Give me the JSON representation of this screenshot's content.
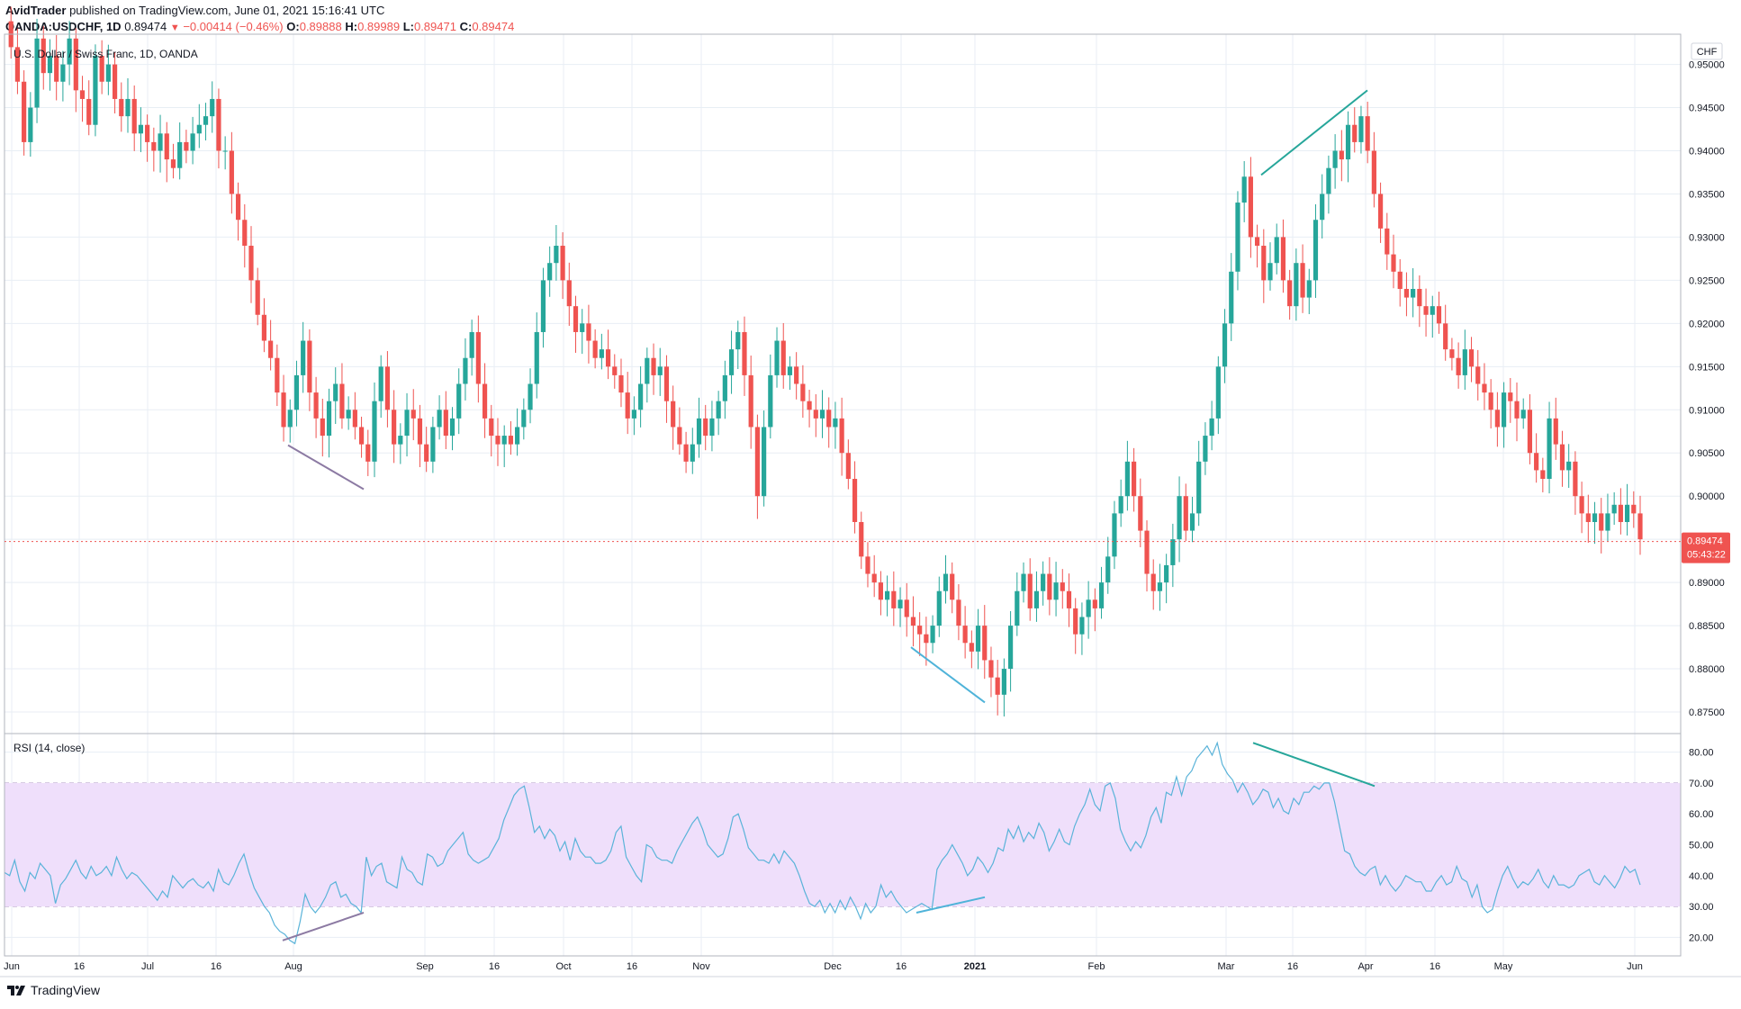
{
  "header": {
    "publisher": "AvidTrader",
    "published_text": "published on TradingView.com, June 01, 2021 15:16:41 UTC",
    "symbol": "OANDA:USDCHF, 1D",
    "last": "0.89474",
    "change": "−0.00414 (−0.46%)",
    "o_label": "O:",
    "o_value": "0.89888",
    "h_label": "H:",
    "h_value": "0.89989",
    "l_label": "L:",
    "l_value": "0.89471",
    "c_label": "C:",
    "c_value": "0.89474"
  },
  "footer": {
    "brand": "TradingView"
  },
  "colors": {
    "up": "#26a69a",
    "down": "#ef5350",
    "rsi_line": "#5ab3d9",
    "rsi_band": "#efdffb",
    "grid": "#e8eef4",
    "price_line": "#ef5350",
    "trend_teal": "#26a69a",
    "trend_purple": "#8c7aa3",
    "trend_blue": "#4fb3d9"
  },
  "chart_data": [
    {
      "type": "candlestick",
      "title": "U.S. Dollar / Swiss Franc, 1D, OANDA",
      "currency_label": "CHF",
      "ylim": [
        0.8725,
        0.9535
      ],
      "y_ticks": [
        "0.95000",
        "0.94500",
        "0.94000",
        "0.93500",
        "0.93000",
        "0.92500",
        "0.92000",
        "0.91500",
        "0.91000",
        "0.90500",
        "0.90000",
        "0.89500",
        "0.89000",
        "0.88500",
        "0.88000",
        "0.87500"
      ],
      "y_tick_values": [
        0.95,
        0.945,
        0.94,
        0.935,
        0.93,
        0.925,
        0.92,
        0.915,
        0.91,
        0.905,
        0.9,
        0.895,
        0.89,
        0.885,
        0.88,
        0.875
      ],
      "last_price_label": "0.89474",
      "countdown_label": "05:43:22",
      "last_price": 0.89474,
      "closes": [
        0.955,
        0.952,
        0.948,
        0.941,
        0.945,
        0.953,
        0.949,
        0.951,
        0.948,
        0.95,
        0.953,
        0.947,
        0.946,
        0.943,
        0.951,
        0.948,
        0.95,
        0.946,
        0.944,
        0.946,
        0.942,
        0.943,
        0.941,
        0.94,
        0.942,
        0.939,
        0.938,
        0.941,
        0.94,
        0.942,
        0.943,
        0.944,
        0.946,
        0.94,
        0.94,
        0.935,
        0.932,
        0.929,
        0.925,
        0.921,
        0.918,
        0.916,
        0.912,
        0.908,
        0.91,
        0.914,
        0.918,
        0.912,
        0.909,
        0.907,
        0.911,
        0.913,
        0.909,
        0.91,
        0.908,
        0.906,
        0.904,
        0.911,
        0.915,
        0.91,
        0.906,
        0.907,
        0.91,
        0.909,
        0.906,
        0.904,
        0.908,
        0.91,
        0.907,
        0.909,
        0.913,
        0.916,
        0.919,
        0.913,
        0.909,
        0.907,
        0.906,
        0.907,
        0.906,
        0.908,
        0.91,
        0.913,
        0.919,
        0.925,
        0.927,
        0.929,
        0.925,
        0.922,
        0.919,
        0.92,
        0.918,
        0.916,
        0.917,
        0.915,
        0.914,
        0.912,
        0.909,
        0.91,
        0.913,
        0.916,
        0.914,
        0.915,
        0.911,
        0.908,
        0.906,
        0.904,
        0.906,
        0.909,
        0.907,
        0.909,
        0.911,
        0.914,
        0.917,
        0.919,
        0.914,
        0.908,
        0.9,
        0.908,
        0.914,
        0.918,
        0.914,
        0.915,
        0.913,
        0.911,
        0.91,
        0.909,
        0.91,
        0.908,
        0.909,
        0.905,
        0.902,
        0.897,
        0.893,
        0.891,
        0.89,
        0.888,
        0.889,
        0.887,
        0.888,
        0.886,
        0.885,
        0.884,
        0.883,
        0.885,
        0.889,
        0.891,
        0.888,
        0.885,
        0.883,
        0.882,
        0.885,
        0.881,
        0.879,
        0.877,
        0.88,
        0.885,
        0.889,
        0.891,
        0.887,
        0.889,
        0.891,
        0.888,
        0.89,
        0.889,
        0.887,
        0.884,
        0.886,
        0.888,
        0.887,
        0.89,
        0.893,
        0.898,
        0.9,
        0.904,
        0.9,
        0.896,
        0.891,
        0.889,
        0.89,
        0.892,
        0.895,
        0.9,
        0.896,
        0.898,
        0.904,
        0.907,
        0.909,
        0.915,
        0.92,
        0.926,
        0.934,
        0.937,
        0.93,
        0.929,
        0.925,
        0.927,
        0.93,
        0.925,
        0.922,
        0.927,
        0.923,
        0.925,
        0.932,
        0.935,
        0.938,
        0.94,
        0.939,
        0.943,
        0.941,
        0.944,
        0.94,
        0.935,
        0.931,
        0.928,
        0.926,
        0.924,
        0.923,
        0.924,
        0.922,
        0.921,
        0.922,
        0.92,
        0.917,
        0.916,
        0.914,
        0.917,
        0.915,
        0.913,
        0.912,
        0.91,
        0.908,
        0.912,
        0.911,
        0.909,
        0.91,
        0.905,
        0.903,
        0.902,
        0.909,
        0.906,
        0.903,
        0.904,
        0.9,
        0.898,
        0.897,
        0.898,
        0.896,
        0.898,
        0.899,
        0.897,
        0.899,
        0.898,
        0.895
      ]
    },
    {
      "type": "line",
      "title": "RSI (14, close)",
      "ylim": [
        14,
        86
      ],
      "y_ticks": [
        "80.00",
        "70.00",
        "60.00",
        "50.00",
        "40.00",
        "30.00",
        "20.00"
      ],
      "y_tick_values": [
        80,
        70,
        60,
        50,
        40,
        30,
        20
      ],
      "band": [
        30,
        70
      ],
      "values": [
        41,
        40,
        45,
        38,
        35,
        41,
        39,
        44,
        42,
        40,
        31,
        37,
        39,
        42,
        45,
        41,
        39,
        43,
        40,
        41,
        43,
        40,
        46,
        42,
        39,
        41,
        40,
        38,
        36,
        34,
        32,
        35,
        33,
        40,
        38,
        36,
        38,
        39,
        37,
        36,
        38,
        35,
        42,
        38,
        37,
        40,
        44,
        47,
        41,
        36,
        33,
        30,
        28,
        24,
        22,
        21,
        19,
        18,
        25,
        34,
        30,
        28,
        30,
        33,
        37,
        38,
        33,
        34,
        31,
        30,
        28,
        46,
        40,
        43,
        44,
        38,
        37,
        36,
        46,
        42,
        41,
        38,
        37,
        47,
        46,
        43,
        44,
        48,
        50,
        52,
        54,
        47,
        45,
        44,
        45,
        46,
        49,
        52,
        58,
        62,
        66,
        68,
        69,
        62,
        54,
        56,
        52,
        55,
        53,
        48,
        51,
        45,
        52,
        48,
        46,
        46,
        44,
        44,
        45,
        48,
        54,
        56,
        46,
        43,
        40,
        38,
        50,
        49,
        46,
        45,
        45,
        44,
        48,
        51,
        54,
        57,
        59,
        55,
        50,
        48,
        46,
        47,
        52,
        59,
        60,
        55,
        49,
        47,
        45,
        45,
        44,
        47,
        44,
        48,
        46,
        44,
        40,
        35,
        31,
        30,
        32,
        28,
        31,
        28,
        32,
        29,
        33,
        30,
        26,
        31,
        28,
        30,
        37,
        33,
        35,
        32,
        30,
        28,
        29,
        30,
        31,
        30,
        29,
        42,
        45,
        47,
        50,
        47,
        44,
        40,
        42,
        46,
        44,
        41,
        44,
        49,
        48,
        55,
        52,
        56,
        51,
        54,
        52,
        57,
        54,
        48,
        51,
        55,
        51,
        50,
        56,
        60,
        63,
        68,
        63,
        61,
        69,
        70,
        65,
        55,
        51,
        48,
        51,
        49,
        53,
        59,
        62,
        57,
        67,
        66,
        72,
        66,
        72,
        74,
        78,
        80,
        82,
        79,
        83,
        76,
        73,
        71,
        67,
        70,
        67,
        63,
        65,
        68,
        67,
        62,
        65,
        61,
        60,
        65,
        63,
        67,
        67,
        69,
        68,
        70,
        70,
        64,
        56,
        48,
        47,
        43,
        41,
        40,
        42,
        43,
        37,
        40,
        37,
        35,
        37,
        40,
        39,
        38,
        38,
        35,
        35,
        38,
        40,
        37,
        38,
        43,
        39,
        38,
        33,
        37,
        30,
        28,
        29,
        35,
        40,
        43,
        39,
        36,
        38,
        37,
        39,
        42,
        38,
        36,
        40,
        37,
        37,
        36,
        37,
        40,
        41,
        42,
        38,
        37,
        40,
        38,
        36,
        39,
        43,
        41,
        42,
        37
      ],
      "x_ticks": [
        "Jun",
        "16",
        "Jul",
        "16",
        "Aug",
        "Sep",
        "16",
        "Oct",
        "16",
        "Nov",
        "Dec",
        "16",
        "2021",
        "Feb",
        "Mar",
        "16",
        "Apr",
        "16",
        "May",
        "Jun"
      ]
    }
  ]
}
